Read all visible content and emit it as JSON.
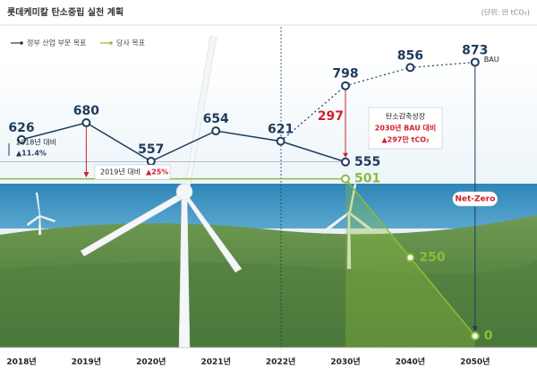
{
  "chart_data": {
    "type": "line",
    "title": "롯데케미칼 탄소중립 실천 계획",
    "unit": "(단위: 만 tCO₂)",
    "categories": [
      "2018년",
      "2019년",
      "2020년",
      "2021년",
      "2022년",
      "2030년",
      "2040년",
      "2050년"
    ],
    "ylim": [
      0,
      900
    ],
    "series": [
      {
        "name": "정부 산업 부문 목표",
        "color": "#1f3b5c",
        "dashed": false,
        "values": [
          626,
          680,
          557,
          654,
          621,
          555,
          null,
          null
        ]
      },
      {
        "name": "BAU",
        "color": "#1f3b5c",
        "dashed": true,
        "values": [
          null,
          null,
          null,
          null,
          621,
          798,
          856,
          873
        ]
      },
      {
        "name": "당사 목표",
        "color": "#8dbb3c",
        "dashed": false,
        "values": [
          null,
          null,
          null,
          null,
          null,
          501,
          250,
          0
        ]
      }
    ],
    "annotations": {
      "vs2018": "2018년 대비",
      "vs2018_pct": "▲11.4%",
      "vs2019": "2019년 대비",
      "vs2019_pct": "▲25%",
      "gap": "297",
      "box_title": "탄소감축성장",
      "box_line1": "2030년 BAU 대비",
      "box_line2": "▲297만 tCO₂",
      "net_zero": "Net-Zero"
    }
  }
}
